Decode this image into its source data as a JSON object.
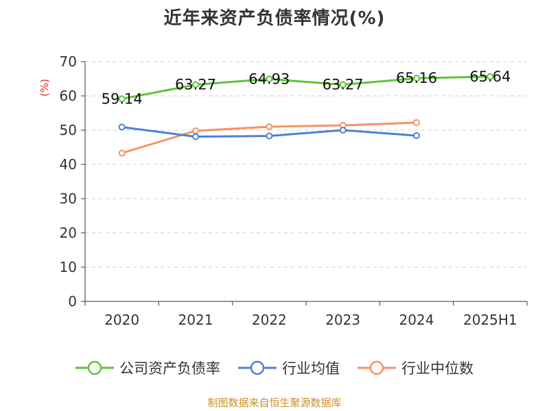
{
  "chart_data": {
    "type": "line",
    "title": "近年来资产负债率情况(%)",
    "ylabel": "(%)",
    "categories": [
      "2020",
      "2021",
      "2022",
      "2023",
      "2024",
      "2025H1"
    ],
    "ylim": [
      0,
      70
    ],
    "yticks": [
      0,
      10,
      20,
      30,
      40,
      50,
      60,
      70
    ],
    "grid": true,
    "legend_position": "bottom",
    "series": [
      {
        "name": "公司资产负债率",
        "color": "#5cc439",
        "values": [
          59.14,
          63.27,
          64.93,
          63.27,
          65.16,
          65.64
        ],
        "labels": [
          "59.14",
          "63.27",
          "64.93",
          "63.27",
          "65.16",
          "65.64"
        ]
      },
      {
        "name": "行业均值",
        "color": "#4f7fd8",
        "values": [
          50.9,
          48.1,
          48.3,
          50.0,
          48.4,
          null
        ]
      },
      {
        "name": "行业中位数",
        "color": "#f59264",
        "values": [
          43.3,
          49.8,
          51.0,
          51.4,
          52.2,
          null
        ]
      }
    ]
  },
  "footer": {
    "source": "制图数据来自恒生聚源数据库"
  }
}
